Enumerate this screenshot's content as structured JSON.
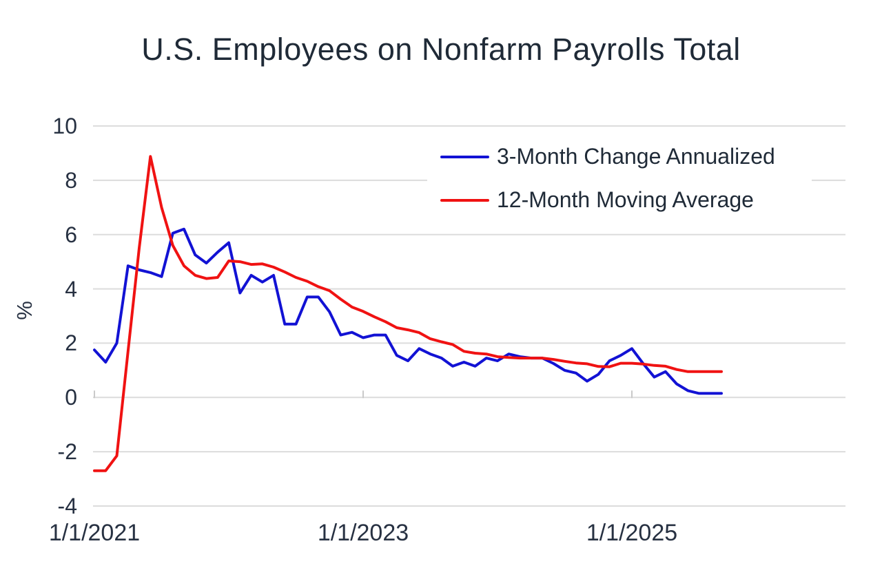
{
  "title": "U.S. Employees on Nonfarm Payrolls Total",
  "colors": {
    "text": "#1f2a37",
    "gridline": "#dcdcdc",
    "axis_tick": "#c9c9c9",
    "background": "#ffffff",
    "series_blue": "#1212d4",
    "series_red": "#f01212"
  },
  "chart_data": {
    "type": "line",
    "title": "U.S. Employees on Nonfarm Payrolls Total",
    "xlabel": "",
    "ylabel": "%",
    "ylim": [
      -4,
      10
    ],
    "y_ticks": [
      10,
      8,
      6,
      4,
      2,
      0,
      -2,
      -4
    ],
    "grid": "horizontal",
    "legend_position": "top-right",
    "x_tick_labels": [
      {
        "index": 0,
        "label": "1/1/2021"
      },
      {
        "index": 24,
        "label": "1/1/2023"
      },
      {
        "index": 48,
        "label": "1/1/2025"
      }
    ],
    "x_dates": [
      "2021-01",
      "2021-02",
      "2021-03",
      "2021-04",
      "2021-05",
      "2021-06",
      "2021-07",
      "2021-08",
      "2021-09",
      "2021-10",
      "2021-11",
      "2021-12",
      "2022-01",
      "2022-02",
      "2022-03",
      "2022-04",
      "2022-05",
      "2022-06",
      "2022-07",
      "2022-08",
      "2022-09",
      "2022-10",
      "2022-11",
      "2022-12",
      "2023-01",
      "2023-02",
      "2023-03",
      "2023-04",
      "2023-05",
      "2023-06",
      "2023-07",
      "2023-08",
      "2023-09",
      "2023-10",
      "2023-11",
      "2023-12",
      "2024-01",
      "2024-02",
      "2024-03",
      "2024-04",
      "2024-05",
      "2024-06",
      "2024-07",
      "2024-08",
      "2024-09",
      "2024-10",
      "2024-11",
      "2024-12",
      "2025-01",
      "2025-02",
      "2025-03",
      "2025-04",
      "2025-05",
      "2025-06",
      "2025-07",
      "2025-08",
      "2025-09"
    ],
    "series": [
      {
        "name": "3-Month Change Annualized",
        "color": "#1212d4",
        "values": [
          1.75,
          1.3,
          2.0,
          4.85,
          4.7,
          4.6,
          4.45,
          6.05,
          6.2,
          5.25,
          4.95,
          5.35,
          5.7,
          3.85,
          4.5,
          4.25,
          4.5,
          2.7,
          2.7,
          3.7,
          3.7,
          3.15,
          2.3,
          2.4,
          2.2,
          2.3,
          2.3,
          1.55,
          1.35,
          1.8,
          1.6,
          1.45,
          1.15,
          1.3,
          1.15,
          1.45,
          1.35,
          1.6,
          1.5,
          1.45,
          1.45,
          1.25,
          1.0,
          0.9,
          0.6,
          0.85,
          1.35,
          1.55,
          1.8,
          1.25,
          0.75,
          0.95,
          0.5,
          0.25,
          0.15,
          0.15,
          0.15
        ]
      },
      {
        "name": "12-Month Moving Average",
        "color": "#f01212",
        "values": [
          -2.7,
          -2.7,
          -2.15,
          1.7,
          5.5,
          8.88,
          7.0,
          5.6,
          4.85,
          4.5,
          4.38,
          4.42,
          5.03,
          5.0,
          4.9,
          4.92,
          4.8,
          4.62,
          4.42,
          4.28,
          4.08,
          3.93,
          3.62,
          3.33,
          3.17,
          2.97,
          2.79,
          2.57,
          2.49,
          2.39,
          2.16,
          2.05,
          1.95,
          1.7,
          1.63,
          1.6,
          1.5,
          1.47,
          1.45,
          1.45,
          1.45,
          1.4,
          1.33,
          1.27,
          1.24,
          1.14,
          1.13,
          1.26,
          1.26,
          1.23,
          1.18,
          1.15,
          1.03,
          0.95,
          0.95,
          0.95,
          0.95
        ]
      }
    ]
  }
}
